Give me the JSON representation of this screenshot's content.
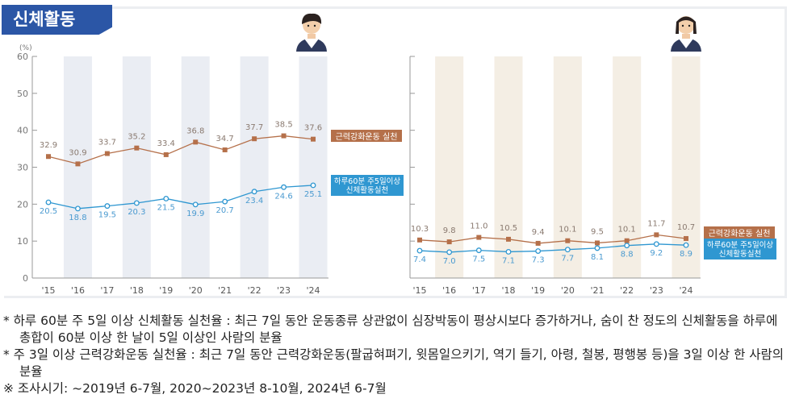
{
  "header": {
    "title": "신체활동"
  },
  "chart_data": [
    {
      "type": "line",
      "panel": "boys",
      "icon": "boy-student-icon",
      "ylabel": "(%)",
      "ylim": [
        0,
        60
      ],
      "yticks": [
        "0",
        "10",
        "20",
        "30",
        "40",
        "50",
        "60"
      ],
      "categories": [
        "'15",
        "'16",
        "'17",
        "'18",
        "'19",
        "'20",
        "'21",
        "'22",
        "'23",
        "'24"
      ],
      "series": [
        {
          "name": "근력강화운동 실천",
          "color": "#b5704a",
          "values": [
            32.9,
            30.9,
            33.7,
            35.2,
            33.4,
            36.8,
            34.7,
            37.7,
            38.5,
            37.6
          ]
        },
        {
          "name": "하루60분 주5일이상 신체활동실천",
          "name_lines": [
            "하루60분 주5일이상",
            "신체활동실천"
          ],
          "color": "#2f97d1",
          "values": [
            20.5,
            18.8,
            19.5,
            20.3,
            21.5,
            19.9,
            20.7,
            23.4,
            24.6,
            25.1
          ]
        }
      ],
      "band_color": "#eaedf3"
    },
    {
      "type": "line",
      "panel": "girls",
      "icon": "girl-student-icon",
      "ylim": [
        0,
        60
      ],
      "categories": [
        "'15",
        "'16",
        "'17",
        "'18",
        "'19",
        "'20",
        "'21",
        "'22",
        "'23",
        "'24"
      ],
      "series": [
        {
          "name": "근력강화운동 실천",
          "color": "#b5704a",
          "values": [
            10.3,
            9.8,
            11.0,
            10.5,
            9.4,
            10.1,
            9.5,
            10.1,
            11.7,
            10.7
          ]
        },
        {
          "name": "하루60분 주5일이상 신체활동실천",
          "name_lines": [
            "하루60분 주5일이상",
            "신체활동실천"
          ],
          "color": "#2f97d1",
          "values": [
            7.4,
            7.0,
            7.5,
            7.1,
            7.3,
            7.7,
            8.1,
            8.8,
            9.2,
            8.9
          ]
        }
      ],
      "band_color": "#f4eee4"
    }
  ],
  "notes": [
    "* 하루 60분 주 5일 이상 신체활동 실천율 : 최근 7일 동안 운동종류 상관없이 심장박동이 평상시보다 증가하거나, 숨이 찬 정도의 신체활동을 하루에 총합이 60분 이상 한 날이 5일 이상인 사람의 분율",
    "* 주 3일 이상 근력강화운동 실천율 : 최근 7일 동안 근력강화운동(팔굽혀펴기, 윗몸일으키기, 역기 들기, 아령, 철봉, 평행봉 등)을 3일 이상 한 사람의 분율",
    "※ 조사시기: ~2019년 6-7월, 2020~2023년 8-10월, 2024년 6-7월"
  ]
}
